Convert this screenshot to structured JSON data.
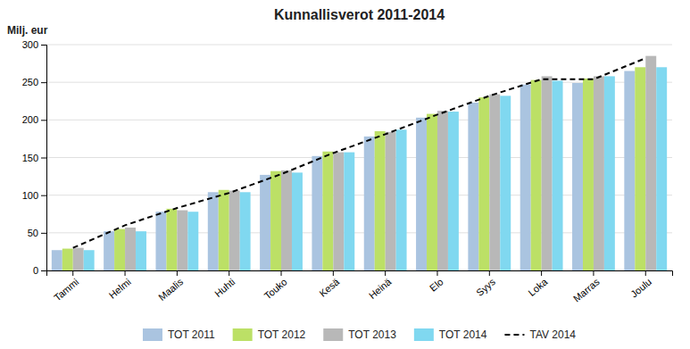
{
  "chart_data": {
    "type": "bar",
    "title": "Kunnallisverot 2011-2014",
    "ylabel": "Milj. eur",
    "categories": [
      "Tammi",
      "Helmi",
      "Maalis",
      "Huhti",
      "Touko",
      "Kesä",
      "Heinä",
      "Elo",
      "Syys",
      "Loka",
      "Marras",
      "Joulu"
    ],
    "series": [
      {
        "name": "TOT 2011",
        "color": "#aac4e0",
        "values": [
          27,
          52,
          78,
          104,
          127,
          152,
          178,
          203,
          223,
          247,
          249,
          265
        ]
      },
      {
        "name": "TOT 2012",
        "color": "#bce066",
        "values": [
          29,
          55,
          82,
          107,
          132,
          158,
          185,
          208,
          230,
          253,
          255,
          270
        ]
      },
      {
        "name": "TOT 2013",
        "color": "#b8b8b8",
        "values": [
          30,
          57,
          80,
          106,
          133,
          157,
          184,
          212,
          234,
          258,
          258,
          285
        ]
      },
      {
        "name": "TOT 2014",
        "color": "#80d8f0",
        "values": [
          27,
          52,
          78,
          104,
          130,
          157,
          187,
          211,
          232,
          252,
          258,
          270
        ]
      },
      {
        "name": "TAV 2014",
        "type": "line",
        "color": "#000000",
        "line_style": "dashed",
        "values": [
          30,
          60,
          83,
          103,
          128,
          156,
          181,
          207,
          232,
          254,
          254,
          282
        ]
      }
    ],
    "ylim": [
      0,
      300
    ],
    "yticks": [
      0,
      50,
      100,
      150,
      200,
      250,
      300
    ],
    "grid": true,
    "legend": "bottom"
  }
}
